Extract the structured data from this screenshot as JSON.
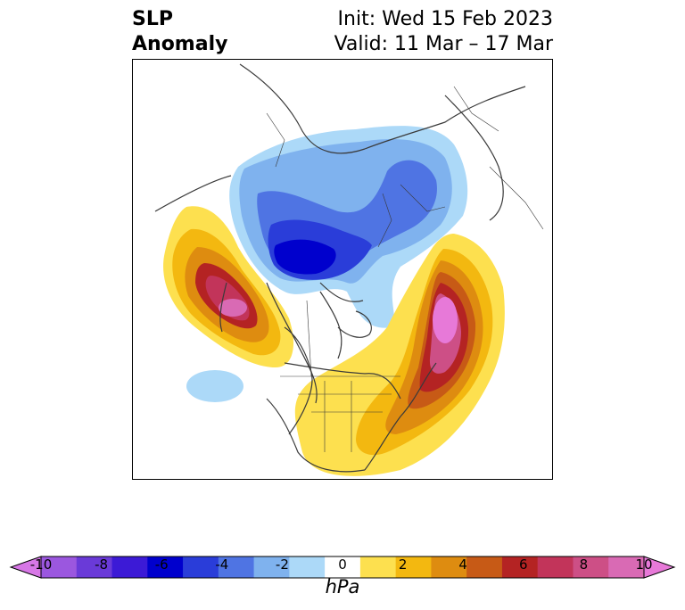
{
  "title": {
    "left_line1": "SLP",
    "left_line2": "Anomaly",
    "init": "Init: Wed 15 Feb 2023",
    "valid": "Valid: 11 Mar – 17 Mar"
  },
  "colorbar": {
    "units": "hPa",
    "ticks": [
      "-10",
      "-8",
      "-6",
      "-4",
      "-2",
      "0",
      "2",
      "4",
      "6",
      "8",
      "10"
    ],
    "colors": [
      "#d777e6",
      "#9b57df",
      "#6a3ad8",
      "#3c1ad6",
      "#0000cd",
      "#2a3dd9",
      "#4f74e3",
      "#7fb2ee",
      "#acd9f8",
      "#ffffff",
      "#fde04f",
      "#f3b810",
      "#de8c10",
      "#c75a16",
      "#b42323",
      "#c2345a",
      "#cd4f86",
      "#d96ab4",
      "#e779d8"
    ]
  }
}
